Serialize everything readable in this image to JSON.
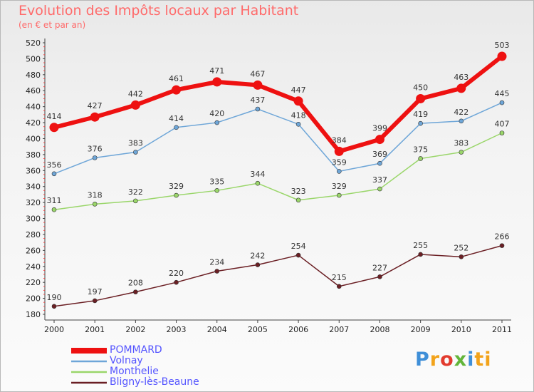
{
  "chart_data": {
    "type": "line",
    "title": "Evolution des Impôts locaux par Habitant",
    "subtitle": "(en € et par an)",
    "x": [
      "2000",
      "2001",
      "2002",
      "2003",
      "2004",
      "2005",
      "2006",
      "2007",
      "2008",
      "2009",
      "2010",
      "2011"
    ],
    "ylim": [
      180,
      520
    ],
    "yticks": [
      180,
      200,
      220,
      240,
      260,
      280,
      300,
      320,
      340,
      360,
      380,
      400,
      420,
      440,
      460,
      480,
      500,
      520
    ],
    "grid": false,
    "legend_position": "bottom-left",
    "series": [
      {
        "name": "Bligny-lès-Beaune",
        "color": "#6b1f24",
        "values": [
          190,
          197,
          208,
          220,
          234,
          242,
          254,
          215,
          227,
          255,
          252,
          266
        ]
      },
      {
        "name": "Monthelie",
        "color": "#9ad66a",
        "values": [
          311,
          318,
          322,
          329,
          335,
          344,
          323,
          329,
          337,
          375,
          383,
          407
        ]
      },
      {
        "name": "Volnay",
        "color": "#6ea6d8",
        "values": [
          356,
          376,
          383,
          414,
          420,
          437,
          418,
          359,
          369,
          419,
          422,
          445
        ]
      },
      {
        "name": "POMMARD",
        "color": "#ee1111",
        "values": [
          414,
          427,
          442,
          461,
          471,
          467,
          447,
          384,
          399,
          450,
          463,
          503
        ]
      }
    ]
  },
  "legend": [
    {
      "label": "POMMARD",
      "color": "#ee1111"
    },
    {
      "label": "Volnay",
      "color": "#6ea6d8"
    },
    {
      "label": "Monthelie",
      "color": "#9ad66a"
    },
    {
      "label": "Bligny-lès-Beaune",
      "color": "#6b1f24"
    }
  ],
  "logo": [
    "P",
    "r",
    "o",
    "x",
    "i",
    "ti"
  ],
  "text_color": "#5555ff",
  "title_color": "#ff6a6a"
}
